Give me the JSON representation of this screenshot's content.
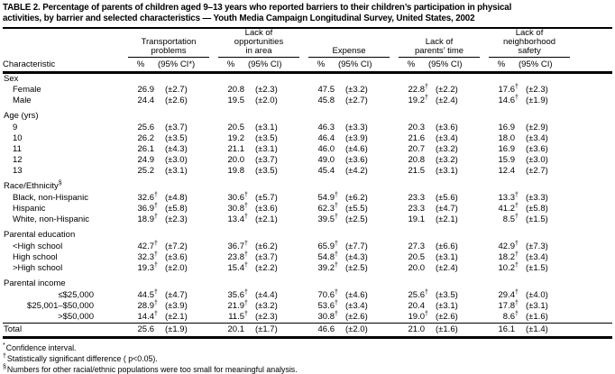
{
  "title": "TABLE 2. Percentage of parents of children aged 9–13 years who reported barriers to their children’s participation in physical\nactivities, by barrier and selected characteristics — Youth Media Campaign Longitudinal Survey, United States, 2002",
  "table": {
    "characteristic_header": "Characteristic",
    "groups": [
      {
        "label": "Transportation\nproblems",
        "pct": "%",
        "ci": "(95% CI*)"
      },
      {
        "label": "Lack of\nopportunities\nin area",
        "pct": "%",
        "ci": "(95% CI)"
      },
      {
        "label": "Expense",
        "pct": "%",
        "ci": "(95% CI)"
      },
      {
        "label": "Lack of\nparents’ time",
        "pct": "%",
        "ci": "(95% CI)"
      },
      {
        "label": "Lack of\nneighborhood\nsafety",
        "pct": "%",
        "ci": "(95% CI)"
      }
    ],
    "rows": [
      {
        "type": "section",
        "label": "Sex"
      },
      {
        "type": "data",
        "label": "Female",
        "cells": [
          "26.9",
          "(±2.7)",
          "20.8",
          "(±2.3)",
          "47.5",
          "(±3.2)",
          "22.8†",
          "(±2.2)",
          "17.6†",
          "(±2.3)"
        ]
      },
      {
        "type": "data",
        "label": "Male",
        "cells": [
          "24.4",
          "(±2.6)",
          "19.5",
          "(±2.0)",
          "45.8",
          "(±2.7)",
          "19.2†",
          "(±2.4)",
          "14.6†",
          "(±1.9)"
        ]
      },
      {
        "type": "section",
        "label": "Age (yrs)",
        "gap": true
      },
      {
        "type": "data",
        "label": "9",
        "cells": [
          "25.6",
          "(±3.7)",
          "20.5",
          "(±3.1)",
          "46.3",
          "(±3.3)",
          "20.3",
          "(±3.6)",
          "16.9",
          "(±2.9)"
        ]
      },
      {
        "type": "data",
        "label": "10",
        "cells": [
          "26.2",
          "(±3.5)",
          "19.2",
          "(±3.5)",
          "46.4",
          "(±3.9)",
          "21.6",
          "(±3.4)",
          "18.0",
          "(±3.4)"
        ]
      },
      {
        "type": "data",
        "label": "11",
        "cells": [
          "26.1",
          "(±4.3)",
          "21.1",
          "(±3.1)",
          "46.0",
          "(±4.6)",
          "20.7",
          "(±3.2)",
          "16.9",
          "(±3.6)"
        ]
      },
      {
        "type": "data",
        "label": "12",
        "cells": [
          "24.9",
          "(±3.0)",
          "20.0",
          "(±3.7)",
          "49.0",
          "(±3.6)",
          "20.8",
          "(±3.2)",
          "15.9",
          "(±3.0)"
        ]
      },
      {
        "type": "data",
        "label": "13",
        "cells": [
          "25.2",
          "(±3.1)",
          "19.8",
          "(±3.5)",
          "45.4",
          "(±4.2)",
          "21.5",
          "(±3.1)",
          "12.4",
          "(±2.7)"
        ]
      },
      {
        "type": "section",
        "label": "Race/Ethnicity§",
        "gap": true
      },
      {
        "type": "data",
        "label": "Black, non-Hispanic",
        "cells": [
          "32.6†",
          "(±4.8)",
          "30.6†",
          "(±5.7)",
          "54.9†",
          "(±6.2)",
          "23.3",
          "(±5.6)",
          "13.3†",
          "(±3.3)"
        ]
      },
      {
        "type": "data",
        "label": "Hispanic",
        "cells": [
          "36.9†",
          "(±5.8)",
          "30.8†",
          "(±3.6)",
          "62.3†",
          "(±5.5)",
          "23.3",
          "(±4.7)",
          "41.2†",
          "(±5.8)"
        ]
      },
      {
        "type": "data",
        "label": "White, non-Hispanic",
        "cells": [
          "18.9†",
          "(±2.3)",
          "13.4†",
          "(±2.1)",
          "39.5†",
          "(±2.5)",
          "19.1",
          "(±2.1)",
          "8.5†",
          "(±1.5)"
        ]
      },
      {
        "type": "section",
        "label": "Parental education",
        "gap": true
      },
      {
        "type": "data",
        "label": "<High school",
        "cells": [
          "42.7†",
          "(±7.2)",
          "36.7†",
          "(±6.2)",
          "65.9†",
          "(±7.7)",
          "27.3",
          "(±6.6)",
          "42.9†",
          "(±7.3)"
        ]
      },
      {
        "type": "data",
        "label": "High school",
        "cells": [
          "32.3†",
          "(±3.6)",
          "23.8†",
          "(±3.7)",
          "54.8†",
          "(±4.3)",
          "20.5",
          "(±3.1)",
          "18.2†",
          "(±3.4)"
        ]
      },
      {
        "type": "data",
        "label": ">High school",
        "cells": [
          "19.3†",
          "(±2.0)",
          "15.4†",
          "(±2.2)",
          "39.2†",
          "(±2.5)",
          "20.0",
          "(±2.4)",
          "10.2†",
          "(±1.5)"
        ]
      },
      {
        "type": "section",
        "label": "Parental income",
        "gap": true
      },
      {
        "type": "data",
        "label": "≤$25,000",
        "align": "right",
        "cells": [
          "44.5†",
          "(±4.7)",
          "35.6†",
          "(±4.4)",
          "70.6†",
          "(±4.6)",
          "25.6†",
          "(±3.5)",
          "29.4†",
          "(±4.0)"
        ]
      },
      {
        "type": "data",
        "label": "$25,001–$50,000",
        "align": "right",
        "cells": [
          "28.9†",
          "(±3.9)",
          "21.9†",
          "(±3.2)",
          "53.6†",
          "(±3.4)",
          "20.4",
          "(±3.1)",
          "17.8†",
          "(±3.1)"
        ]
      },
      {
        "type": "data",
        "label": ">$50,000",
        "align": "right",
        "cells": [
          "14.4†",
          "(±2.1)",
          "11.5†",
          "(±2.3)",
          "30.8†",
          "(±2.6)",
          "19.0†",
          "(±2.6)",
          "8.6†",
          "(±1.6)"
        ]
      },
      {
        "type": "total",
        "label": "Total",
        "cells": [
          "25.6",
          "(±1.9)",
          "20.1",
          "(±1.7)",
          "46.6",
          "(±2.0)",
          "21.0",
          "(±1.6)",
          "16.1",
          "(±1.4)"
        ]
      }
    ]
  },
  "footnotes": [
    {
      "marker": "*",
      "text": "Confidence interval."
    },
    {
      "marker": "†",
      "text": "Statistically significant difference ( p<0.05)."
    },
    {
      "marker": "§",
      "text": "Numbers for other racial/ethnic populations were too small for meaningful analysis."
    }
  ]
}
